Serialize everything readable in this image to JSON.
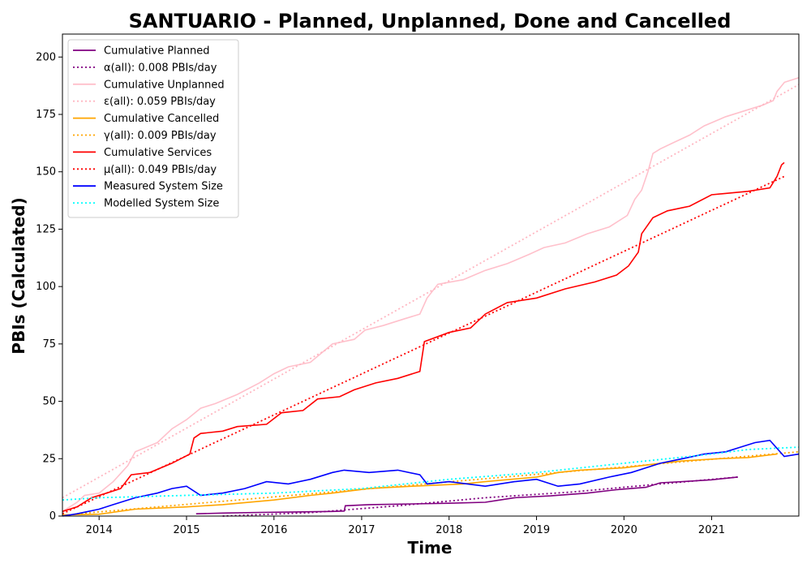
{
  "chart_data": {
    "type": "line",
    "title": "SANTUARIO - Planned, Unplanned, Done  and Cancelled",
    "xlabel": "Time",
    "ylabel": "PBIs (Calculated)",
    "xlim": [
      "2013-08-01",
      "2021-12-31"
    ],
    "ylim": [
      0,
      210
    ],
    "x_ticks": [
      "2014",
      "2015",
      "2016",
      "2017",
      "2018",
      "2019",
      "2020",
      "2021"
    ],
    "y_ticks": [
      0,
      25,
      50,
      75,
      100,
      125,
      150,
      175,
      200
    ],
    "grid": false,
    "legend_position": "upper-left",
    "series": [
      {
        "name": "Cumulative Planned",
        "color": "#800080",
        "style": "solid",
        "points": [
          [
            "2015-02-10",
            1
          ],
          [
            "2015-06-01",
            1.3
          ],
          [
            "2015-11-01",
            1.6
          ],
          [
            "2016-04-01",
            1.8
          ],
          [
            "2016-09-01",
            2
          ],
          [
            "2016-10-20",
            2.2
          ],
          [
            "2016-10-25",
            4.5
          ],
          [
            "2017-02-01",
            5
          ],
          [
            "2017-08-01",
            5.3
          ],
          [
            "2018-01-01",
            5.6
          ],
          [
            "2018-06-01",
            6
          ],
          [
            "2018-08-01",
            7
          ],
          [
            "2018-10-01",
            8
          ],
          [
            "2019-03-01",
            8.8
          ],
          [
            "2019-08-01",
            10
          ],
          [
            "2019-12-01",
            11.5
          ],
          [
            "2020-04-01",
            12.5
          ],
          [
            "2020-06-01",
            14.5
          ],
          [
            "2020-09-01",
            15
          ],
          [
            "2021-01-01",
            15.8
          ],
          [
            "2021-04-20",
            17
          ]
        ]
      },
      {
        "name": "α(all): 0.008 PBIs/day",
        "color": "#800080",
        "style": "dotted",
        "points": [
          [
            "2015-06-01",
            0
          ],
          [
            "2016-06-01",
            1.5
          ],
          [
            "2017-06-01",
            4.5
          ],
          [
            "2018-06-01",
            8
          ],
          [
            "2019-06-01",
            10.5
          ],
          [
            "2020-06-01",
            14
          ],
          [
            "2021-04-20",
            17
          ]
        ]
      },
      {
        "name": "Cumulative Unplanned",
        "color": "#ffc0cb",
        "style": "solid",
        "points": [
          [
            "2013-08-01",
            2
          ],
          [
            "2013-10-01",
            6
          ],
          [
            "2013-11-01",
            9
          ],
          [
            "2014-01-01",
            10
          ],
          [
            "2014-03-01",
            15
          ],
          [
            "2014-05-01",
            22
          ],
          [
            "2014-06-01",
            28
          ],
          [
            "2014-09-01",
            32
          ],
          [
            "2014-11-01",
            38
          ],
          [
            "2015-01-01",
            42
          ],
          [
            "2015-03-01",
            47
          ],
          [
            "2015-05-01",
            49
          ],
          [
            "2015-08-01",
            53
          ],
          [
            "2015-11-01",
            58
          ],
          [
            "2016-01-01",
            62
          ],
          [
            "2016-03-01",
            65
          ],
          [
            "2016-06-01",
            67
          ],
          [
            "2016-09-01",
            75
          ],
          [
            "2016-12-01",
            77
          ],
          [
            "2017-01-15",
            81
          ],
          [
            "2017-04-01",
            83
          ],
          [
            "2017-07-01",
            86
          ],
          [
            "2017-09-01",
            88
          ],
          [
            "2017-10-01",
            95
          ],
          [
            "2017-11-15",
            101
          ],
          [
            "2018-03-01",
            103
          ],
          [
            "2018-06-01",
            107
          ],
          [
            "2018-09-01",
            110
          ],
          [
            "2018-12-01",
            114
          ],
          [
            "2019-02-01",
            117
          ],
          [
            "2019-05-01",
            119
          ],
          [
            "2019-08-01",
            123
          ],
          [
            "2019-11-01",
            126
          ],
          [
            "2020-01-15",
            131
          ],
          [
            "2020-02-15",
            138
          ],
          [
            "2020-03-15",
            142
          ],
          [
            "2020-04-10",
            150
          ],
          [
            "2020-05-01",
            158
          ],
          [
            "2020-06-01",
            160
          ],
          [
            "2020-08-01",
            163
          ],
          [
            "2020-10-01",
            166
          ],
          [
            "2020-12-01",
            170
          ],
          [
            "2021-03-01",
            174
          ],
          [
            "2021-05-01",
            176
          ],
          [
            "2021-08-01",
            179
          ],
          [
            "2021-09-15",
            181
          ],
          [
            "2021-10-01",
            185
          ],
          [
            "2021-11-01",
            189
          ],
          [
            "2021-12-31",
            191
          ]
        ]
      },
      {
        "name": "ε(all): 0.059 PBIs/day",
        "color": "#ffb6c1",
        "style": "dotted",
        "points": [
          [
            "2013-08-01",
            8
          ],
          [
            "2021-12-31",
            188
          ]
        ]
      },
      {
        "name": "Cumulative Cancelled",
        "color": "#ffa500",
        "style": "solid",
        "points": [
          [
            "2013-08-01",
            0.5
          ],
          [
            "2014-01-01",
            0.8
          ],
          [
            "2014-06-01",
            3
          ],
          [
            "2015-01-01",
            4
          ],
          [
            "2015-06-01",
            5
          ],
          [
            "2016-01-01",
            7
          ],
          [
            "2016-06-01",
            9
          ],
          [
            "2016-09-01",
            10
          ],
          [
            "2017-02-01",
            12
          ],
          [
            "2017-08-01",
            13
          ],
          [
            "2018-03-01",
            14
          ],
          [
            "2018-06-01",
            15
          ],
          [
            "2019-01-01",
            17
          ],
          [
            "2019-04-01",
            19
          ],
          [
            "2019-07-01",
            20
          ],
          [
            "2020-01-01",
            21
          ],
          [
            "2020-06-01",
            23
          ],
          [
            "2020-09-01",
            24
          ],
          [
            "2021-02-01",
            25
          ],
          [
            "2021-06-01",
            25.5
          ],
          [
            "2021-10-01",
            27
          ]
        ]
      },
      {
        "name": "γ(all): 0.009 PBIs/day",
        "color": "#ffa500",
        "style": "dotted",
        "points": [
          [
            "2013-10-01",
            1
          ],
          [
            "2021-12-31",
            28
          ]
        ]
      },
      {
        "name": "Cumulative Services",
        "color": "#ff0000",
        "style": "solid",
        "points": [
          [
            "2013-08-01",
            2
          ],
          [
            "2013-10-01",
            4
          ],
          [
            "2013-12-01",
            8
          ],
          [
            "2014-02-01",
            10
          ],
          [
            "2014-04-01",
            12
          ],
          [
            "2014-05-15",
            18
          ],
          [
            "2014-08-01",
            19
          ],
          [
            "2014-11-01",
            23
          ],
          [
            "2015-01-15",
            27
          ],
          [
            "2015-02-01",
            34
          ],
          [
            "2015-03-01",
            36
          ],
          [
            "2015-06-01",
            37
          ],
          [
            "2015-08-01",
            39
          ],
          [
            "2015-12-01",
            40
          ],
          [
            "2016-02-01",
            45
          ],
          [
            "2016-05-01",
            46
          ],
          [
            "2016-07-01",
            51
          ],
          [
            "2016-10-01",
            52
          ],
          [
            "2016-12-01",
            55
          ],
          [
            "2017-03-01",
            58
          ],
          [
            "2017-06-01",
            60
          ],
          [
            "2017-09-01",
            63
          ],
          [
            "2017-09-20",
            76
          ],
          [
            "2018-01-01",
            80
          ],
          [
            "2018-04-01",
            82
          ],
          [
            "2018-06-01",
            88
          ],
          [
            "2018-09-01",
            93
          ],
          [
            "2019-01-01",
            95
          ],
          [
            "2019-05-01",
            99
          ],
          [
            "2019-09-01",
            102
          ],
          [
            "2019-12-01",
            105
          ],
          [
            "2020-01-20",
            109
          ],
          [
            "2020-03-01",
            115
          ],
          [
            "2020-03-15",
            123
          ],
          [
            "2020-05-01",
            130
          ],
          [
            "2020-07-01",
            133
          ],
          [
            "2020-10-01",
            135
          ],
          [
            "2021-01-01",
            140
          ],
          [
            "2021-06-01",
            141.5
          ],
          [
            "2021-09-01",
            143
          ],
          [
            "2021-10-01",
            148
          ],
          [
            "2021-10-20",
            153
          ],
          [
            "2021-10-31",
            154
          ]
        ]
      },
      {
        "name": "μ(all): 0.049 PBIs/day",
        "color": "#ff0000",
        "style": "dotted",
        "points": [
          [
            "2013-08-01",
            1
          ],
          [
            "2021-10-31",
            148
          ]
        ]
      },
      {
        "name": "Measured System Size",
        "color": "#0000ff",
        "style": "solid",
        "points": [
          [
            "2013-08-01",
            0
          ],
          [
            "2013-10-01",
            1
          ],
          [
            "2014-01-01",
            3
          ],
          [
            "2014-03-01",
            5
          ],
          [
            "2014-06-01",
            8
          ],
          [
            "2014-09-01",
            10
          ],
          [
            "2014-11-01",
            12
          ],
          [
            "2015-01-01",
            13
          ],
          [
            "2015-03-01",
            9
          ],
          [
            "2015-06-01",
            10
          ],
          [
            "2015-09-01",
            12
          ],
          [
            "2015-12-01",
            15
          ],
          [
            "2016-03-01",
            14
          ],
          [
            "2016-06-01",
            16
          ],
          [
            "2016-09-01",
            19
          ],
          [
            "2016-10-20",
            20
          ],
          [
            "2017-02-01",
            19
          ],
          [
            "2017-06-01",
            20
          ],
          [
            "2017-09-01",
            18
          ],
          [
            "2017-10-01",
            14
          ],
          [
            "2018-01-01",
            15
          ],
          [
            "2018-06-01",
            13
          ],
          [
            "2018-10-01",
            15
          ],
          [
            "2019-01-01",
            16
          ],
          [
            "2019-04-01",
            13
          ],
          [
            "2019-07-01",
            14
          ],
          [
            "2019-11-01",
            17
          ],
          [
            "2020-02-01",
            19
          ],
          [
            "2020-04-01",
            21
          ],
          [
            "2020-06-01",
            23
          ],
          [
            "2020-09-01",
            25
          ],
          [
            "2020-12-01",
            27
          ],
          [
            "2021-03-01",
            28
          ],
          [
            "2021-05-01",
            30
          ],
          [
            "2021-07-01",
            32
          ],
          [
            "2021-09-01",
            33
          ],
          [
            "2021-10-31",
            26
          ],
          [
            "2021-12-31",
            27
          ]
        ]
      },
      {
        "name": "Modelled System Size",
        "color": "#00ffff",
        "style": "dotted",
        "points": [
          [
            "2013-08-01",
            7
          ],
          [
            "2014-01-01",
            8
          ],
          [
            "2015-01-01",
            9
          ],
          [
            "2016-01-01",
            10
          ],
          [
            "2017-01-01",
            12
          ],
          [
            "2018-01-01",
            16
          ],
          [
            "2019-01-01",
            19
          ],
          [
            "2020-01-01",
            23
          ],
          [
            "2020-07-01",
            25
          ],
          [
            "2021-01-01",
            27
          ],
          [
            "2021-06-01",
            29
          ],
          [
            "2021-12-31",
            30
          ]
        ]
      }
    ]
  }
}
